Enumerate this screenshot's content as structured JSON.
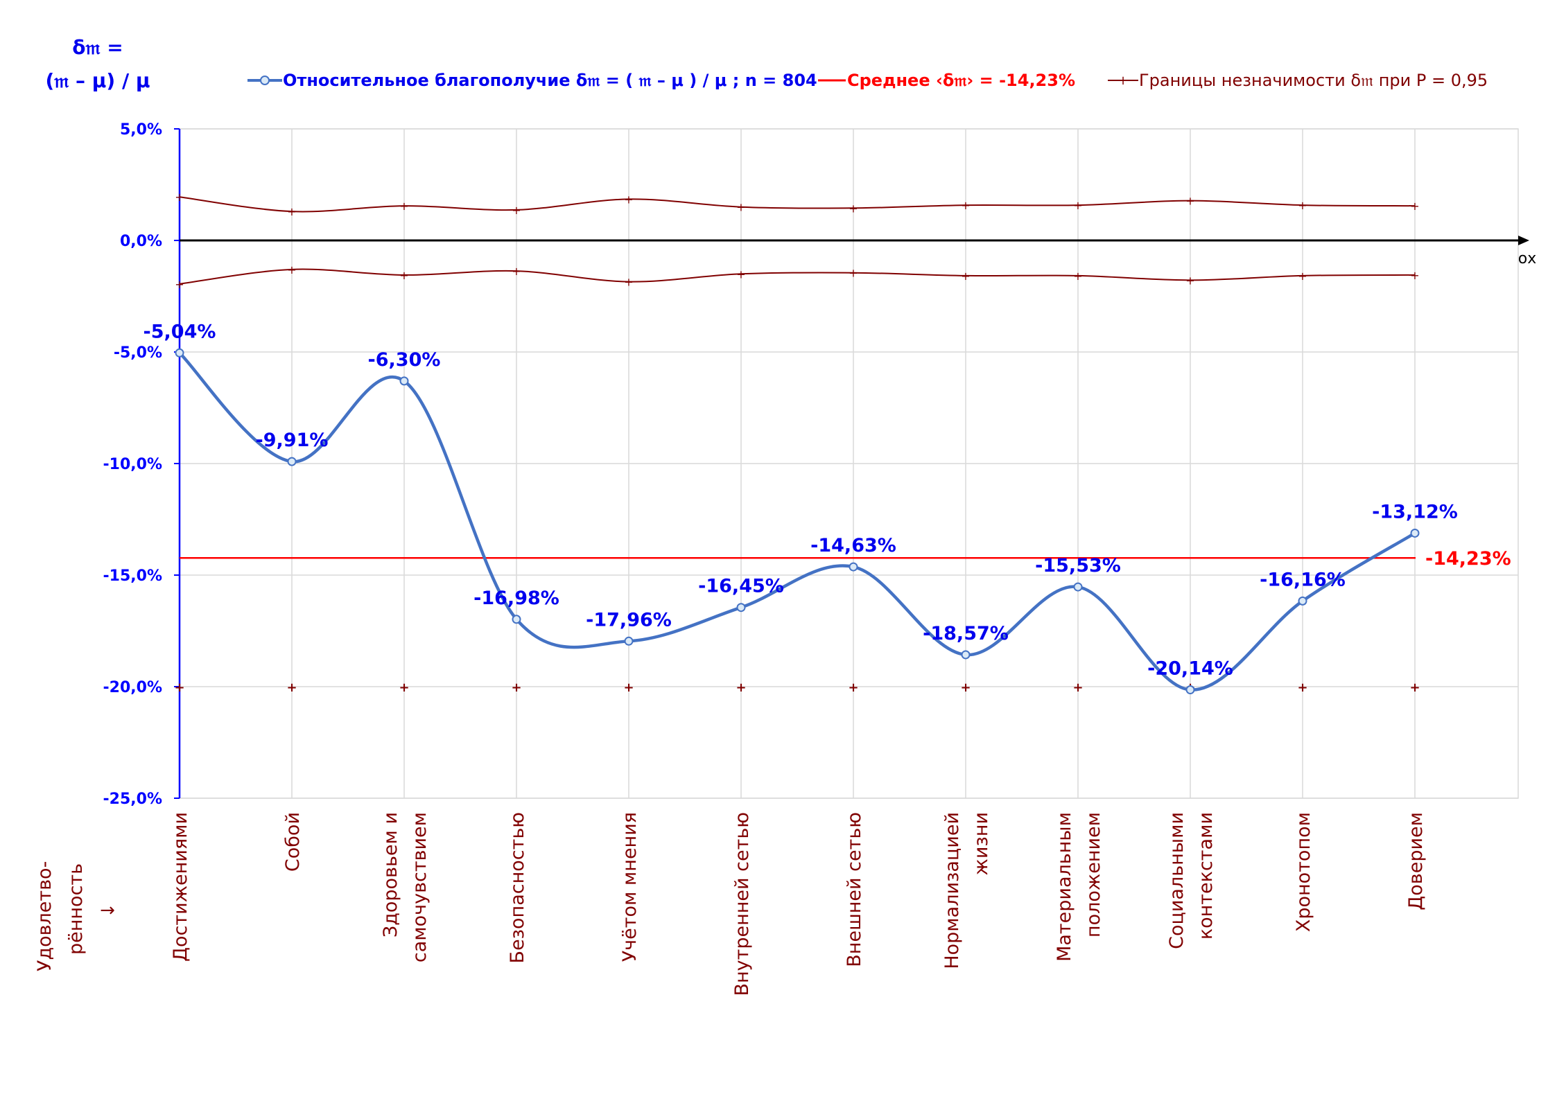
{
  "chart_data": {
    "type": "line",
    "y_title_line1": "δ𝔪 =",
    "y_title_line2": "(𝔪 – μ) / μ",
    "x_axis_name": "ох",
    "x_title_line1": "Удовлетво-",
    "x_title_line2": "рённость",
    "x_title_arrow": "→",
    "ylim": [
      -0.25,
      0.05
    ],
    "yticks": [
      {
        "value": 0.05,
        "label": "5,0%"
      },
      {
        "value": 0.0,
        "label": "0,0%"
      },
      {
        "value": -0.05,
        "label": "-5,0%"
      },
      {
        "value": -0.1,
        "label": "-10,0%"
      },
      {
        "value": -0.15,
        "label": "-15,0%"
      },
      {
        "value": -0.2,
        "label": "-20,0%"
      },
      {
        "value": -0.25,
        "label": "-25,0%"
      }
    ],
    "grid": true,
    "legend_position": "top",
    "categories": [
      [
        "Достижениями"
      ],
      [
        "Собой"
      ],
      [
        "Здоровьем и",
        "самочувствием"
      ],
      [
        "Безопасностью"
      ],
      [
        "Учётом мнения"
      ],
      [
        "Внутренней сетью"
      ],
      [
        "Внешней сетью"
      ],
      [
        "Нормализацией",
        "жизни"
      ],
      [
        "Материальным",
        "положением"
      ],
      [
        "Социальными",
        "контекстами"
      ],
      [
        "Хронотопом"
      ],
      [
        "Доверием"
      ]
    ],
    "series": [
      {
        "name": "Относительное благополучие δ𝔪 = ( 𝔪 – μ ) / μ ; n = 804",
        "color": "#4472c4",
        "values": [
          -0.0504,
          -0.0991,
          -0.063,
          -0.1698,
          -0.1796,
          -0.1645,
          -0.1463,
          -0.1857,
          -0.1553,
          -0.2014,
          -0.1616,
          -0.1312
        ],
        "labels": [
          "-5,04%",
          "-9,91%",
          "-6,30%",
          "-16,98%",
          "-17,96%",
          "-16,45%",
          "-14,63%",
          "-18,57%",
          "-15,53%",
          "-20,14%",
          "-16,16%",
          "-13,12%"
        ]
      },
      {
        "name": "Среднее ‹δ𝔪› = -14,23%",
        "color": "#ff0000",
        "value": -0.1423,
        "label": "-14,23%"
      },
      {
        "name": "Границы незначимости δ𝔪 при Р = 0,95",
        "color": "#800000",
        "upper": [
          0.0195,
          0.013,
          0.0155,
          0.0137,
          0.0185,
          0.015,
          0.0145,
          0.0158,
          0.0158,
          0.0178,
          0.0158,
          0.0155
        ],
        "lower": [
          -0.0195,
          -0.013,
          -0.0155,
          -0.0137,
          -0.0185,
          -0.015,
          -0.0145,
          -0.0158,
          -0.0158,
          -0.0178,
          -0.0158,
          -0.0155
        ],
        "marker_row_value": -0.2
      }
    ]
  }
}
